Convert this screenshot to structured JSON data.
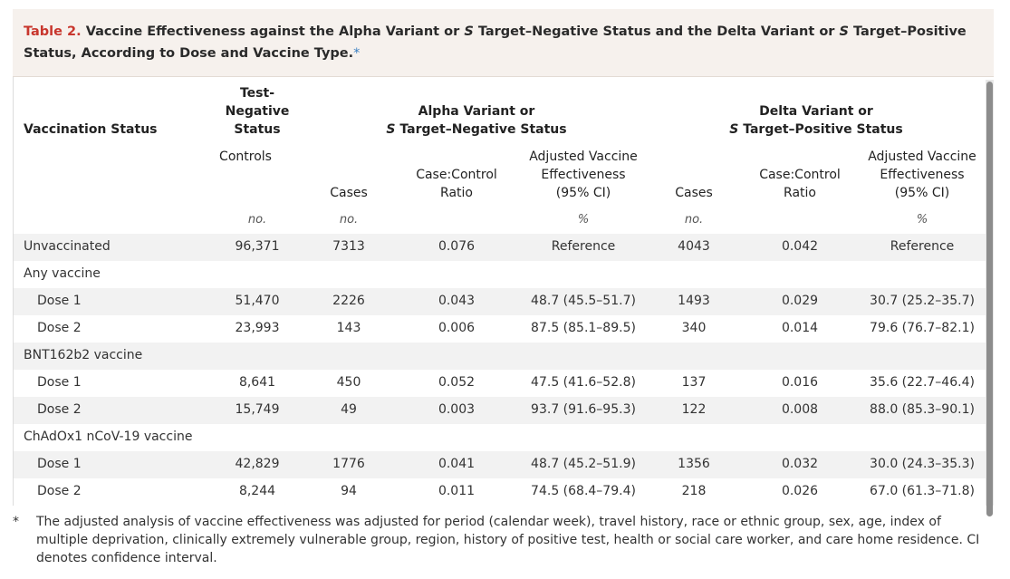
{
  "title": {
    "label": "Table 2.",
    "text_part1": " Vaccine Effectiveness against the Alpha Variant or ",
    "s1": "S",
    "text_part2": " Target–Negative Status and the Delta Variant or ",
    "s2": "S",
    "text_part3": " Target–Positive Status, According to Dose and Vaccine Type.",
    "footnote_marker": "*"
  },
  "headers": {
    "vaccination_status": "Vaccination Status",
    "test_negative_line1": "Test-",
    "test_negative_line2": "Negative",
    "test_negative_line3": "Status",
    "alpha_line1": "Alpha Variant or",
    "alpha_s": "S",
    "alpha_line2": " Target–Negative Status",
    "delta_line1": "Delta Variant or",
    "delta_s": "S",
    "delta_line2": " Target–Positive Status",
    "controls": "Controls",
    "cases": "Cases",
    "ratio_line1": "Case:Control",
    "ratio_line2": "Ratio",
    "ave_line1": "Adjusted Vaccine",
    "ave_line2": "Effectiveness",
    "ave_line3": "(95% CI)"
  },
  "units": {
    "controls": "no.",
    "alpha_cases": "no.",
    "alpha_ave": "%",
    "delta_cases": "no.",
    "delta_ave": "%"
  },
  "rows": [
    {
      "label": "Unvaccinated",
      "controls": "96,371",
      "a_cases": "7313",
      "a_ratio": "0.076",
      "a_ave": "Reference",
      "d_cases": "4043",
      "d_ratio": "0.042",
      "d_ave": "Reference"
    },
    {
      "label": "Any vaccine"
    },
    {
      "label": "Dose 1",
      "controls": "51,470",
      "a_cases": "2226",
      "a_ratio": "0.043",
      "a_ave": "48.7 (45.5–51.7)",
      "d_cases": "1493",
      "d_ratio": "0.029",
      "d_ave": "30.7 (25.2–35.7)"
    },
    {
      "label": "Dose 2",
      "controls": "23,993",
      "a_cases": "143",
      "a_ratio": "0.006",
      "a_ave": "87.5 (85.1–89.5)",
      "d_cases": "340",
      "d_ratio": "0.014",
      "d_ave": "79.6 (76.7–82.1)"
    },
    {
      "label": "BNT162b2 vaccine"
    },
    {
      "label": "Dose 1",
      "controls": "8,641",
      "a_cases": "450",
      "a_ratio": "0.052",
      "a_ave": "47.5 (41.6–52.8)",
      "d_cases": "137",
      "d_ratio": "0.016",
      "d_ave": "35.6 (22.7–46.4)"
    },
    {
      "label": "Dose 2",
      "controls": "15,749",
      "a_cases": "49",
      "a_ratio": "0.003",
      "a_ave": "93.7 (91.6–95.3)",
      "d_cases": "122",
      "d_ratio": "0.008",
      "d_ave": "88.0 (85.3–90.1)"
    },
    {
      "label": "ChAdOx1 nCoV-19 vaccine"
    },
    {
      "label": "Dose 1",
      "controls": "42,829",
      "a_cases": "1776",
      "a_ratio": "0.041",
      "a_ave": "48.7 (45.2–51.9)",
      "d_cases": "1356",
      "d_ratio": "0.032",
      "d_ave": "30.0 (24.3–35.3)"
    },
    {
      "label": "Dose 2",
      "controls": "8,244",
      "a_cases": "94",
      "a_ratio": "0.011",
      "a_ave": "74.5 (68.4–79.4)",
      "d_cases": "218",
      "d_ratio": "0.026",
      "d_ave": "67.0 (61.3–71.8)"
    }
  ],
  "footnote": {
    "marker": "*",
    "text": "The adjusted analysis of vaccine effectiveness was adjusted for period (calendar week), travel history, race or ethnic group, sex, age, index of multiple deprivation, clinically extremely vulnerable group, region, history of positive test, health or social care worker, and care home residence. CI denotes confidence interval."
  },
  "colors": {
    "title_label": "#c8362d",
    "title_bg": "#f6f1ed",
    "row_shade": "#f2f2f2",
    "asterisk": "#3a7fc1"
  }
}
